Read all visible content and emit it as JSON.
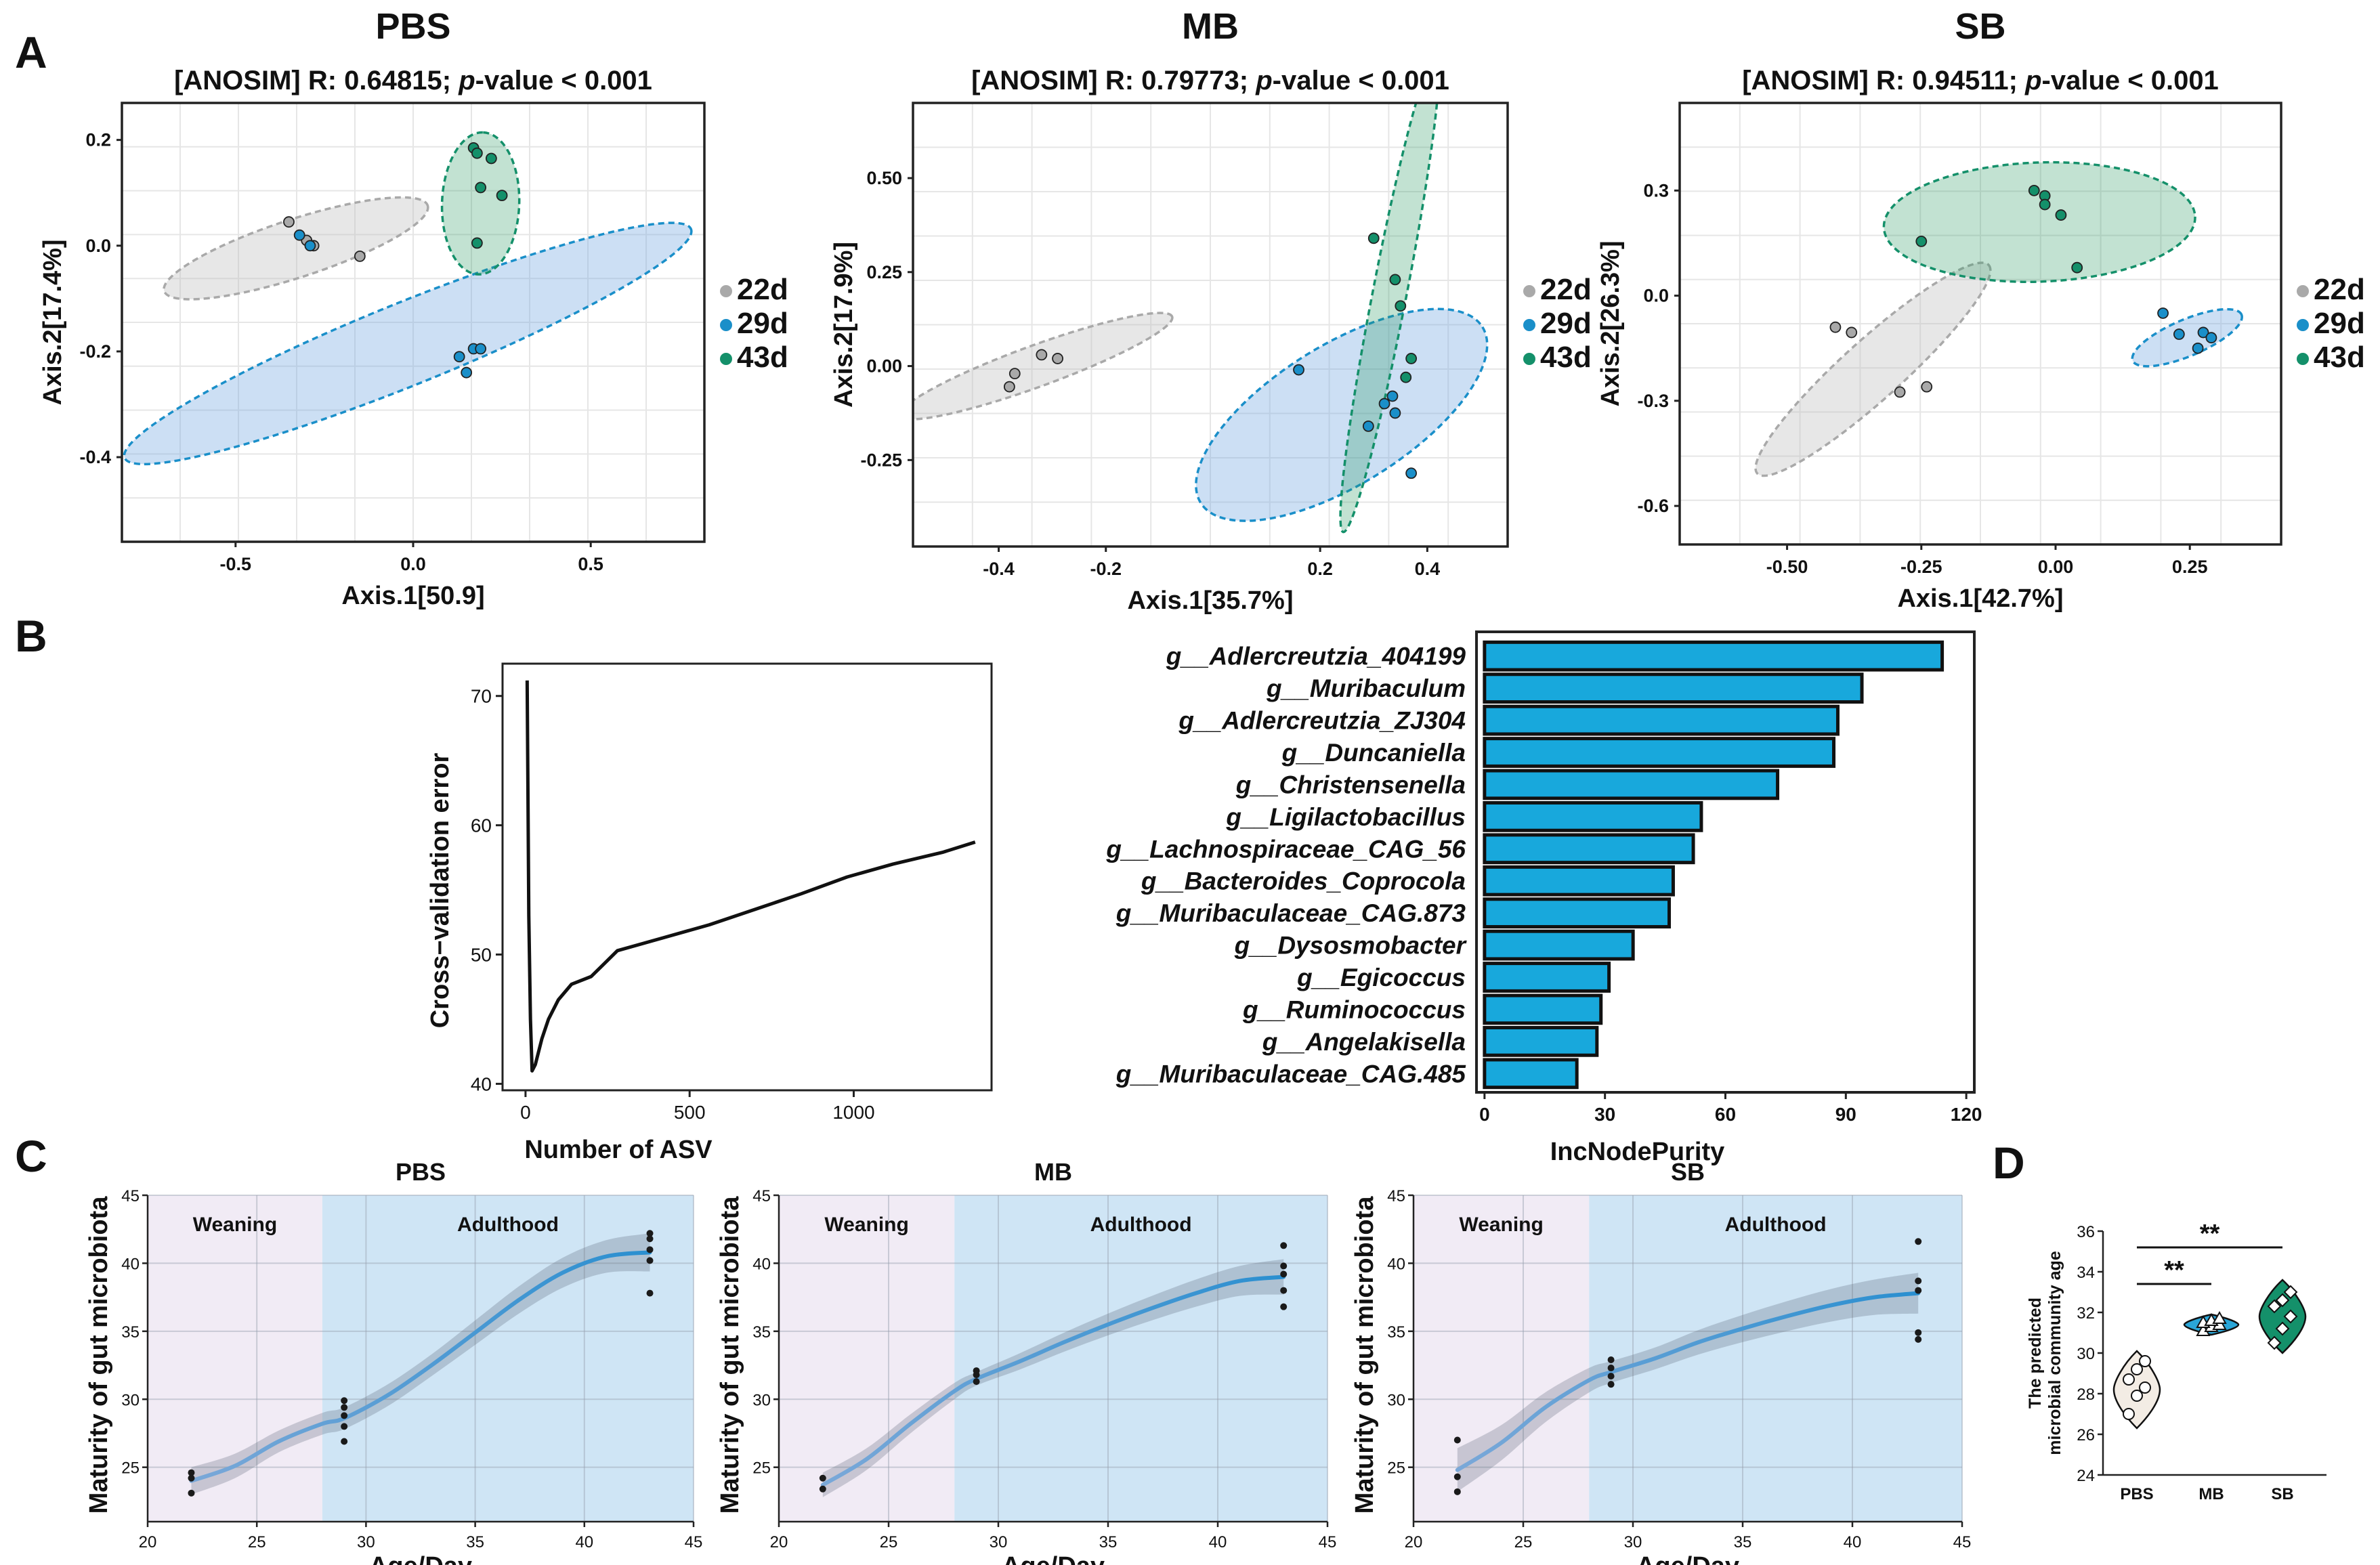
{
  "panel_letters": {
    "a": "A",
    "b": "B",
    "c": "C",
    "d": "D"
  },
  "colors": {
    "c22": "#a9a9a9",
    "c29": "#1a8fc9",
    "c43": "#14906a",
    "bar": "#18a8dc",
    "line": "#2a8fd0",
    "weaning": "#f1ebf5",
    "adult": "#cfe5f5",
    "grid": "#e6e6e6"
  },
  "chart_data": [
    {
      "type": "scatter",
      "panel": "A",
      "id": "pbs",
      "title": "PBS",
      "subtitle_prefix": "[ANOSIM] R: 0.64815; ",
      "subtitle_p": "p",
      "subtitle_suffix": "-value < 0.001",
      "xlabel": "Axis.1[50.9]",
      "ylabel": "Axis.2[17.4%]",
      "xlim": [
        -0.82,
        0.82
      ],
      "ylim": [
        -0.56,
        0.27
      ],
      "xticks": [
        -0.5,
        0.0,
        0.5
      ],
      "xtick_labels": [
        "-0.5",
        "0.0",
        "0.5"
      ],
      "yticks": [
        0.2,
        0.0,
        -0.2,
        -0.4
      ],
      "ytick_labels": [
        "0.2",
        "0.0",
        "-0.2",
        "-0.4"
      ],
      "legend": [
        "22d",
        "29d",
        "43d"
      ],
      "series": [
        {
          "name": "22d",
          "points": [
            [
              -0.35,
              0.045
            ],
            [
              -0.3,
              0.01
            ],
            [
              -0.28,
              0.0
            ],
            [
              -0.15,
              -0.02
            ]
          ]
        },
        {
          "name": "29d",
          "points": [
            [
              -0.32,
              0.02
            ],
            [
              -0.29,
              0.0
            ],
            [
              0.13,
              -0.21
            ],
            [
              0.15,
              -0.24
            ],
            [
              0.17,
              -0.195
            ],
            [
              0.19,
              -0.195
            ]
          ]
        },
        {
          "name": "43d",
          "points": [
            [
              0.17,
              0.185
            ],
            [
              0.22,
              0.165
            ],
            [
              0.19,
              0.11
            ],
            [
              0.25,
              0.095
            ],
            [
              0.18,
              0.005
            ],
            [
              0.18,
              0.175
            ]
          ]
        }
      ],
      "ellipses": [
        {
          "group": "22d",
          "cx": -0.33,
          "cy": -0.005,
          "rx": 0.39,
          "ry": 0.055,
          "angle": -18
        },
        {
          "group": "29d",
          "cx": -0.015,
          "cy": -0.185,
          "rx": 0.86,
          "ry": 0.078,
          "angle": -22
        },
        {
          "group": "43d",
          "cx": 0.19,
          "cy": 0.08,
          "rx": 0.2,
          "ry": 0.073,
          "angle": -88
        }
      ]
    },
    {
      "type": "scatter",
      "panel": "A",
      "id": "mb",
      "title": "MB",
      "subtitle_prefix": "[ANOSIM] R: 0.79773; ",
      "subtitle_p": "p",
      "subtitle_suffix": "-value < 0.001",
      "xlabel": "Axis.1[35.7%]",
      "ylabel": "Axis.2[17.9%]",
      "xlim": [
        -0.56,
        0.55
      ],
      "ylim": [
        -0.48,
        0.7
      ],
      "xticks": [
        -0.4,
        -0.2,
        0.2,
        0.4
      ],
      "xtick_labels": [
        "-0.4",
        "-0.2",
        "0.2",
        "0.4"
      ],
      "yticks": [
        0.5,
        0.25,
        0.0,
        -0.25
      ],
      "ytick_labels": [
        "0.50",
        "0.25",
        "0.00",
        "-0.25"
      ],
      "legend": [
        "22d",
        "29d",
        "43d"
      ],
      "series": [
        {
          "name": "22d",
          "points": [
            [
              -0.38,
              -0.055
            ],
            [
              -0.37,
              -0.02
            ],
            [
              -0.32,
              0.03
            ],
            [
              -0.29,
              0.02
            ]
          ]
        },
        {
          "name": "29d",
          "points": [
            [
              0.16,
              -0.01
            ],
            [
              0.29,
              -0.16
            ],
            [
              0.32,
              -0.1
            ],
            [
              0.34,
              -0.125
            ],
            [
              0.335,
              -0.08
            ],
            [
              0.37,
              -0.285
            ]
          ]
        },
        {
          "name": "43d",
          "points": [
            [
              0.3,
              0.34
            ],
            [
              0.34,
              0.23
            ],
            [
              0.35,
              0.16
            ],
            [
              0.36,
              -0.03
            ],
            [
              0.37,
              0.02
            ]
          ]
        }
      ],
      "ellipses": [
        {
          "group": "22d",
          "cx": -0.33,
          "cy": 0.0,
          "rx": 0.27,
          "ry": 0.055,
          "angle": -20
        },
        {
          "group": "29d",
          "cx": 0.24,
          "cy": -0.13,
          "rx": 0.31,
          "ry": 0.185,
          "angle": -32
        },
        {
          "group": "43d",
          "cx": 0.33,
          "cy": 0.195,
          "rx": 0.455,
          "ry": 0.045,
          "angle": -79
        }
      ]
    },
    {
      "type": "scatter",
      "panel": "A",
      "id": "sb",
      "title": "SB",
      "subtitle_prefix": "[ANOSIM] R: 0.94511; ",
      "subtitle_p": "p",
      "subtitle_suffix": "-value < 0.001",
      "xlabel": "Axis.1[42.7%]",
      "ylabel": "Axis.2[26.3%]",
      "xlim": [
        -0.7,
        0.42
      ],
      "ylim": [
        -0.71,
        0.55
      ],
      "xticks": [
        -0.5,
        -0.25,
        0.0,
        0.25
      ],
      "xtick_labels": [
        "-0.50",
        "-0.25",
        "0.00",
        "0.25"
      ],
      "yticks": [
        0.3,
        0.0,
        -0.3,
        -0.6
      ],
      "ytick_labels": [
        "0.3",
        "0.0",
        "-0.3",
        "-0.6"
      ],
      "legend": [
        "22d",
        "29d",
        "43d"
      ],
      "series": [
        {
          "name": "22d",
          "points": [
            [
              -0.41,
              -0.09
            ],
            [
              -0.38,
              -0.105
            ],
            [
              -0.29,
              -0.275
            ],
            [
              -0.24,
              -0.26
            ]
          ]
        },
        {
          "name": "29d",
          "points": [
            [
              0.2,
              -0.05
            ],
            [
              0.23,
              -0.11
            ],
            [
              0.265,
              -0.15
            ],
            [
              0.275,
              -0.105
            ],
            [
              0.29,
              -0.12
            ]
          ]
        },
        {
          "name": "43d",
          "points": [
            [
              -0.25,
              0.155
            ],
            [
              -0.04,
              0.3
            ],
            [
              -0.02,
              0.285
            ],
            [
              -0.02,
              0.26
            ],
            [
              0.01,
              0.23
            ],
            [
              0.04,
              0.08
            ]
          ]
        }
      ],
      "ellipses": [
        {
          "group": "22d",
          "cx": -0.34,
          "cy": -0.21,
          "rx": 0.29,
          "ry": 0.085,
          "angle": -42
        },
        {
          "group": "29d",
          "cx": 0.245,
          "cy": -0.12,
          "rx": 0.11,
          "ry": 0.052,
          "angle": -23
        },
        {
          "group": "43d",
          "cx": -0.03,
          "cy": 0.21,
          "rx": 0.29,
          "ry": 0.17,
          "angle": -2
        }
      ]
    },
    {
      "type": "line",
      "panel": "B",
      "id": "cv",
      "title": "",
      "xlabel": "Number of ASV",
      "ylabel": "Cross−validation error",
      "xlim": [
        -70,
        1420
      ],
      "ylim": [
        39.5,
        72.5
      ],
      "xticks": [
        0,
        500,
        1000
      ],
      "xtick_labels": [
        "0",
        "500",
        "1000"
      ],
      "yticks": [
        40,
        50,
        60,
        70
      ],
      "ytick_labels": [
        "40",
        "50",
        "60",
        "70"
      ],
      "x": [
        5,
        10,
        15,
        20,
        30,
        50,
        70,
        100,
        140,
        200,
        280,
        420,
        560,
        700,
        840,
        980,
        1120,
        1270,
        1370
      ],
      "y": [
        71.2,
        53.0,
        45.0,
        41.0,
        41.5,
        43.5,
        45.0,
        46.5,
        47.7,
        48.3,
        50.3,
        51.3,
        52.3,
        53.5,
        54.7,
        56.0,
        57.0,
        57.9,
        58.7
      ]
    },
    {
      "type": "bar",
      "orientation": "horizontal",
      "panel": "B",
      "id": "importance",
      "xlabel": "IncNodePurity",
      "ylabel": "",
      "xlim": [
        -2,
        122
      ],
      "xticks": [
        0,
        30,
        60,
        90,
        120
      ],
      "xtick_labels": [
        "0",
        "30",
        "60",
        "90",
        "120"
      ],
      "categories": [
        "g__Adlercreutzia_404199",
        "g__Muribaculum",
        "g__Adlercreutzia_ZJ304",
        "g__Duncaniella",
        "g__Christensenella",
        "g__Ligilactobacillus",
        "g__Lachnospiraceae_CAG_56",
        "g__Bacteroides_Coprocola",
        "g__Muribaculaceae_CAG.873",
        "g__Dysosmobacter",
        "g__Egicoccus",
        "g__Ruminococcus",
        "g__Angelakisella",
        "g__Muribaculaceae_CAG.485"
      ],
      "values": [
        114,
        94,
        88,
        87,
        73,
        54,
        52,
        47,
        46,
        37,
        31,
        29,
        28,
        23
      ]
    },
    {
      "type": "line",
      "panel": "C",
      "id": "mat_pbs",
      "title": "PBS",
      "xlabel": "Age/Day",
      "ylabel": "Maturity of gut microbiota",
      "xlim": [
        20,
        45
      ],
      "ylim": [
        21,
        45
      ],
      "xticks": [
        20,
        25,
        30,
        35,
        40,
        45
      ],
      "xtick_labels": [
        "20",
        "25",
        "30",
        "35",
        "40",
        "45"
      ],
      "yticks": [
        25,
        30,
        35,
        40,
        45
      ],
      "ytick_labels": [
        "25",
        "30",
        "35",
        "40",
        "45"
      ],
      "phases": [
        {
          "label": "Weaning",
          "from": 20,
          "to": 28
        },
        {
          "label": "Adulthood",
          "from": 28,
          "to": 45
        }
      ],
      "fit_x": [
        22,
        24,
        26,
        28,
        29,
        31,
        33,
        35,
        37,
        39,
        41,
        43
      ],
      "fit_y": [
        24.0,
        25.1,
        26.9,
        28.2,
        28.6,
        30.3,
        32.5,
        34.9,
        37.3,
        39.3,
        40.5,
        40.8
      ],
      "fit_ci": [
        1.0,
        0.9,
        0.8,
        0.8,
        0.8,
        0.8,
        0.8,
        0.9,
        1.0,
        1.1,
        1.2,
        1.4
      ],
      "points": [
        [
          22,
          23.1
        ],
        [
          22,
          24.2
        ],
        [
          22,
          24.6
        ],
        [
          29,
          26.9
        ],
        [
          29,
          28.0
        ],
        [
          29,
          28.8
        ],
        [
          29,
          29.4
        ],
        [
          29,
          29.9
        ],
        [
          43,
          37.8
        ],
        [
          43,
          40.2
        ],
        [
          43,
          41.0
        ],
        [
          43,
          41.8
        ],
        [
          43,
          42.2
        ]
      ]
    },
    {
      "type": "line",
      "panel": "C",
      "id": "mat_mb",
      "title": "MB",
      "xlabel": "Age/Day",
      "ylabel": "Maturity of gut microbiota",
      "xlim": [
        20,
        45
      ],
      "ylim": [
        21,
        45
      ],
      "xticks": [
        20,
        25,
        30,
        35,
        40,
        45
      ],
      "xtick_labels": [
        "20",
        "25",
        "30",
        "35",
        "40",
        "45"
      ],
      "yticks": [
        25,
        30,
        35,
        40,
        45
      ],
      "ytick_labels": [
        "25",
        "30",
        "35",
        "40",
        "45"
      ],
      "phases": [
        {
          "label": "Weaning",
          "from": 20,
          "to": 28
        },
        {
          "label": "Adulthood",
          "from": 28,
          "to": 45
        }
      ],
      "fit_x": [
        22,
        24,
        26,
        28,
        29,
        31,
        33,
        35,
        37,
        39,
        41,
        43
      ],
      "fit_y": [
        23.7,
        25.6,
        28.2,
        30.6,
        31.5,
        32.8,
        34.2,
        35.5,
        36.7,
        37.8,
        38.7,
        39.0
      ],
      "fit_ci": [
        0.9,
        0.8,
        0.7,
        0.6,
        0.5,
        0.6,
        0.7,
        0.8,
        0.9,
        1.0,
        1.1,
        1.3
      ],
      "points": [
        [
          22,
          23.4
        ],
        [
          22,
          24.2
        ],
        [
          29,
          31.3
        ],
        [
          29,
          31.8
        ],
        [
          29,
          32.1
        ],
        [
          43,
          36.8
        ],
        [
          43,
          38.0
        ],
        [
          43,
          39.2
        ],
        [
          43,
          39.8
        ],
        [
          43,
          41.3
        ]
      ]
    },
    {
      "type": "line",
      "panel": "C",
      "id": "mat_sb",
      "title": "SB",
      "xlabel": "Age/Day",
      "ylabel": "Maturity of gut microbiota",
      "xlim": [
        20,
        45
      ],
      "ylim": [
        21,
        45
      ],
      "xticks": [
        20,
        25,
        30,
        35,
        40,
        45
      ],
      "xtick_labels": [
        "20",
        "25",
        "30",
        "35",
        "40",
        "45"
      ],
      "yticks": [
        25,
        30,
        35,
        40,
        45
      ],
      "ytick_labels": [
        "25",
        "30",
        "35",
        "40",
        "45"
      ],
      "phases": [
        {
          "label": "Weaning",
          "from": 20,
          "to": 28
        },
        {
          "label": "Adulthood",
          "from": 28,
          "to": 45
        }
      ],
      "fit_x": [
        22,
        24,
        26,
        28,
        29,
        31,
        33,
        35,
        37,
        39,
        41,
        43
      ],
      "fit_y": [
        24.8,
        26.8,
        29.4,
        31.4,
        32.0,
        33.0,
        34.2,
        35.2,
        36.1,
        36.9,
        37.5,
        37.8
      ],
      "fit_ci": [
        1.6,
        1.3,
        1.1,
        0.9,
        0.8,
        0.8,
        0.9,
        1.0,
        1.1,
        1.2,
        1.3,
        1.5
      ],
      "points": [
        [
          22,
          23.2
        ],
        [
          22,
          24.3
        ],
        [
          22,
          27.0
        ],
        [
          29,
          31.1
        ],
        [
          29,
          31.7
        ],
        [
          29,
          32.3
        ],
        [
          29,
          32.9
        ],
        [
          43,
          34.4
        ],
        [
          43,
          34.9
        ],
        [
          43,
          38.0
        ],
        [
          43,
          38.7
        ],
        [
          43,
          41.6
        ]
      ]
    },
    {
      "type": "violin",
      "panel": "D",
      "id": "age",
      "xlabel": "",
      "ylabel": "The predicted microbial community age",
      "ylabel_lines": [
        "The predicted",
        "microbial community age"
      ],
      "ylim": [
        24,
        36
      ],
      "yticks": [
        24,
        26,
        28,
        30,
        32,
        34,
        36
      ],
      "ytick_labels": [
        "24",
        "26",
        "28",
        "30",
        "32",
        "34",
        "36"
      ],
      "categories": [
        "PBS",
        "MB",
        "SB"
      ],
      "groups": [
        {
          "name": "PBS",
          "points": [
            27.0,
            27.9,
            28.3,
            28.7,
            29.2,
            29.6
          ],
          "range": [
            26.3,
            30.1
          ]
        },
        {
          "name": "MB",
          "points": [
            31.1,
            31.3,
            31.4,
            31.5,
            31.6,
            31.7
          ],
          "range": [
            30.9,
            31.9
          ]
        },
        {
          "name": "SB",
          "points": [
            30.5,
            31.2,
            31.8,
            32.3,
            32.6,
            33.0
          ],
          "range": [
            30.0,
            33.6
          ]
        }
      ],
      "significance": [
        {
          "from": "PBS",
          "to": "MB",
          "label": "**",
          "y": 33.4
        },
        {
          "from": "PBS",
          "to": "SB",
          "label": "**",
          "y": 35.2
        }
      ]
    }
  ]
}
